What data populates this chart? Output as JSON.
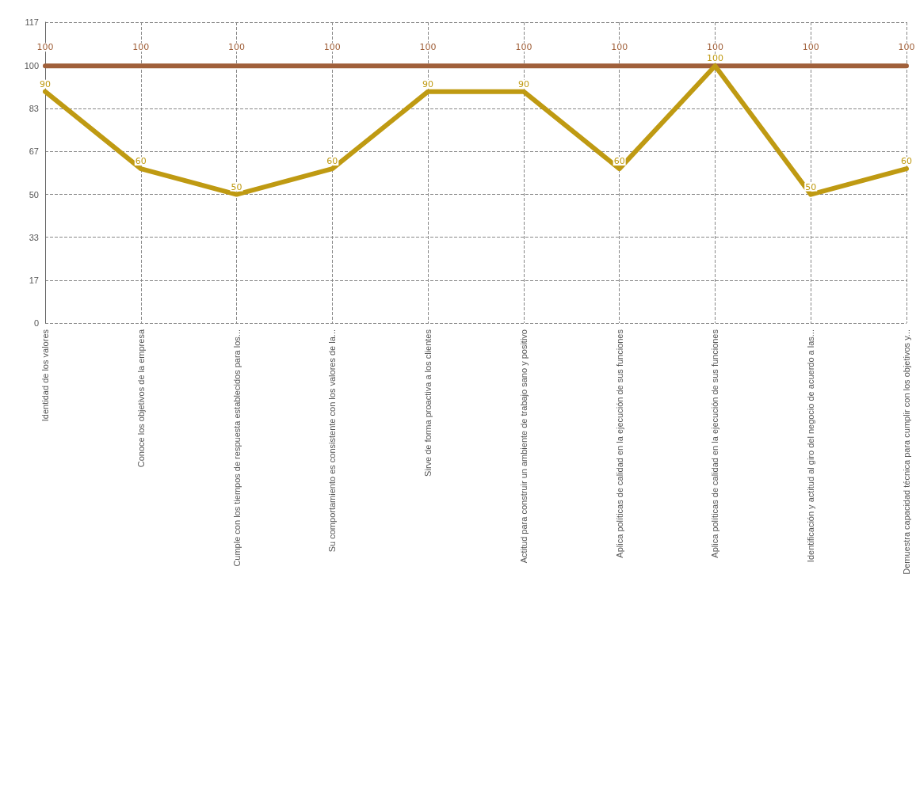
{
  "chart_data": {
    "type": "line",
    "categories": [
      "Identidad de los valores",
      "Conoce los objetivos de la empresa",
      "Cumple con los tiempos de respuesta establecidos para los...",
      "Su comportamiento es consistente con los valores de la...",
      "Sirve de forma proactiva a los clientes",
      "Actitud para construir un ambiente de trabajo sano y positivo",
      "Aplica políticas de calidad en la ejecución de sus funciones",
      "Aplica políticas de calidad en la ejecución de sus funciones",
      "Identificación y actitud al giro del negocio de acuerdo a las...",
      "Demuestra capacidad técnica para cumplir con los objetivos y..."
    ],
    "series": [
      {
        "color": "#a0603a",
        "values": [
          100,
          100,
          100,
          100,
          100,
          100,
          100,
          100,
          100,
          100
        ]
      },
      {
        "color": "#bf9a12",
        "values": [
          90,
          60,
          50,
          60,
          90,
          90,
          60,
          100,
          50,
          60
        ]
      }
    ],
    "ylim": [
      0,
      117
    ],
    "yticks": [
      0,
      {
        "value": 16.67,
        "label": "17"
      },
      {
        "value": 33.33,
        "label": "33"
      },
      50,
      {
        "value": 66.67,
        "label": "67"
      },
      {
        "value": 83.33,
        "label": "83"
      },
      100,
      117
    ],
    "grid": true,
    "data_labels": true,
    "marker": "none",
    "line_style": "solid"
  }
}
